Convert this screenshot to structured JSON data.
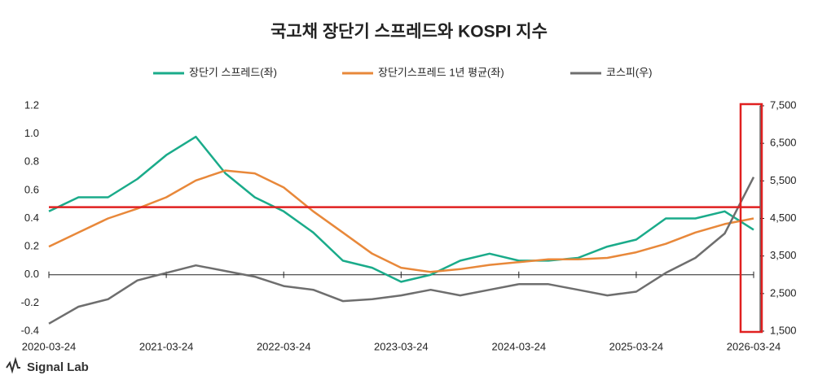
{
  "chart_data": {
    "type": "line",
    "title": "국고채 장단기 스프레드와 KOSPI 지수",
    "x": [
      "2020-03-24",
      "2020-06-24",
      "2020-09-24",
      "2020-12-24",
      "2021-03-24",
      "2021-06-24",
      "2021-09-24",
      "2021-12-24",
      "2022-03-24",
      "2022-06-24",
      "2022-09-24",
      "2022-12-24",
      "2023-03-24",
      "2023-06-24",
      "2023-09-24",
      "2023-12-24",
      "2024-03-24",
      "2024-06-24",
      "2024-09-24",
      "2024-12-24",
      "2025-03-24",
      "2025-06-24",
      "2025-09-24",
      "2025-12-24",
      "2026-03-24"
    ],
    "series": [
      {
        "name": "장단기 스프레드(좌)",
        "color": "#1aab8a",
        "values": [
          0.45,
          0.55,
          0.55,
          0.68,
          0.85,
          0.98,
          0.72,
          0.55,
          0.45,
          0.3,
          0.1,
          0.05,
          -0.05,
          0.0,
          0.1,
          0.15,
          0.1,
          0.1,
          0.12,
          0.2,
          0.25,
          0.4,
          0.4,
          0.45,
          0.32
        ]
      },
      {
        "name": "장단기스프레드 1년 평균(좌)",
        "color": "#e8883a",
        "values": [
          0.2,
          0.3,
          0.4,
          0.47,
          0.55,
          0.67,
          0.74,
          0.72,
          0.62,
          0.45,
          0.3,
          0.15,
          0.05,
          0.02,
          0.04,
          0.07,
          0.09,
          0.11,
          0.11,
          0.12,
          0.16,
          0.22,
          0.3,
          0.36,
          0.4
        ]
      },
      {
        "name": "코스피(우)",
        "color": "#6e6e6e",
        "axis": "y2",
        "values": [
          1700,
          2150,
          2350,
          2850,
          3050,
          3250,
          3100,
          2950,
          2700,
          2600,
          2300,
          2350,
          2450,
          2600,
          2450,
          2600,
          2750,
          2750,
          2600,
          2450,
          2550,
          3050,
          3450,
          4100,
          5600
        ]
      }
    ],
    "xlim": [
      "2020-03-24",
      "2026-03-24"
    ],
    "xticks": [
      "2020-03-24",
      "2021-03-24",
      "2022-03-24",
      "2023-03-24",
      "2024-03-24",
      "2025-03-24",
      "2026-03-24"
    ],
    "ylim": [
      -0.4,
      1.2
    ],
    "yticks": [
      -0.4,
      -0.2,
      {
        "value": 0,
        "label": "0.0"
      },
      0.2,
      0.4,
      0.6,
      0.8,
      {
        "value": 1,
        "label": "1.0"
      },
      1.2
    ],
    "y2lim": [
      1500,
      7500
    ],
    "y2ticks": [
      {
        "value": 1500,
        "label": "1,500"
      },
      {
        "value": 2500,
        "label": "2,500"
      },
      {
        "value": 3500,
        "label": "3,500"
      },
      {
        "value": 4500,
        "label": "4,500"
      },
      {
        "value": 5500,
        "label": "5,500"
      },
      {
        "value": 6500,
        "label": "6,500"
      },
      {
        "value": 7500,
        "label": "7,500"
      }
    ],
    "reference_line": {
      "value": 0.48,
      "color": "#e02020"
    },
    "legend": "top",
    "source": "Signal Lab"
  }
}
